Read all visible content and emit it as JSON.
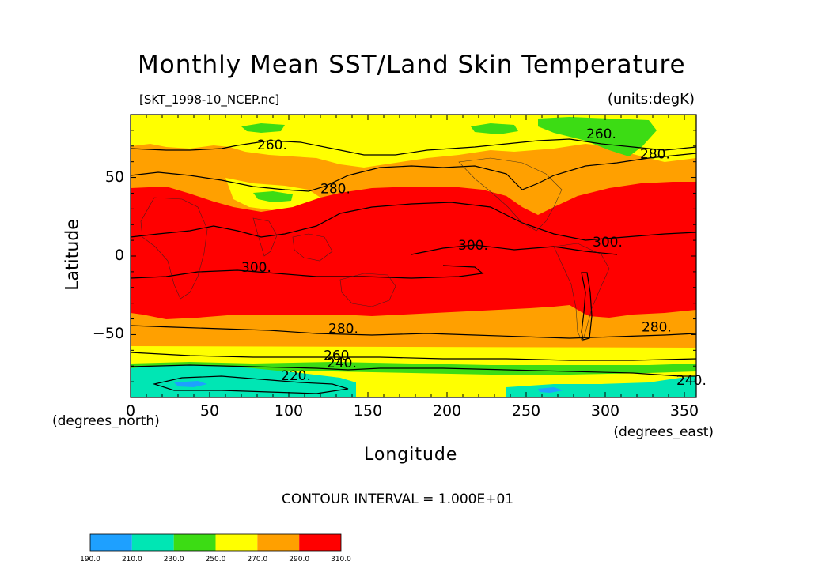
{
  "title": "Monthly Mean SST/Land Skin Temperature",
  "file_label": "[SKT_1998-10_NCEP.nc]",
  "units_label": "(units:degK)",
  "y_axis": {
    "label": "Latitude",
    "units": "(degrees_north)",
    "ticks": [
      "50",
      "0",
      "−50"
    ],
    "tick_values": [
      50,
      0,
      -50
    ],
    "range": [
      -90,
      90
    ]
  },
  "x_axis": {
    "label": "Longitude",
    "units": "(degrees_east)",
    "ticks": [
      "0",
      "50",
      "100",
      "150",
      "200",
      "250",
      "300",
      "350"
    ],
    "tick_values": [
      0,
      50,
      100,
      150,
      200,
      250,
      300,
      350
    ],
    "range": [
      0,
      357.5
    ]
  },
  "contour_interval": "CONTOUR INTERVAL = 1.000E+01",
  "contour_labels": [
    {
      "text": "260.",
      "lon": 80,
      "lat": 68
    },
    {
      "text": "280.",
      "lon": 120,
      "lat": 40
    },
    {
      "text": "260.",
      "lon": 288,
      "lat": 75
    },
    {
      "text": "280.",
      "lon": 322,
      "lat": 62
    },
    {
      "text": "300.",
      "lon": 70,
      "lat": -10
    },
    {
      "text": "300.",
      "lon": 207,
      "lat": 4
    },
    {
      "text": "300.",
      "lon": 292,
      "lat": 6
    },
    {
      "text": "280.",
      "lon": 125,
      "lat": -49
    },
    {
      "text": "280.",
      "lon": 323,
      "lat": -48
    },
    {
      "text": "260",
      "lon": 122,
      "lat": -66
    },
    {
      "text": "240.",
      "lon": 124,
      "lat": -71
    },
    {
      "text": "220.",
      "lon": 95,
      "lat": -79
    },
    {
      "text": "240.",
      "lon": 345,
      "lat": -82
    }
  ],
  "colorbar": {
    "ticks": [
      "190.0",
      "210.0",
      "230.0",
      "250.0",
      "270.0",
      "290.0",
      "310.0"
    ],
    "colors": [
      "#1ea0ff",
      "#00e6b4",
      "#3cdc14",
      "#ffff00",
      "#ffa000",
      "#ff0000"
    ]
  },
  "colors": {
    "band_190_210": "#1ea0ff",
    "band_210_230": "#00e6b4",
    "band_230_250": "#3cdc14",
    "band_250_270": "#ffff00",
    "band_270_290": "#ffa000",
    "band_290_310": "#ff0000"
  }
}
